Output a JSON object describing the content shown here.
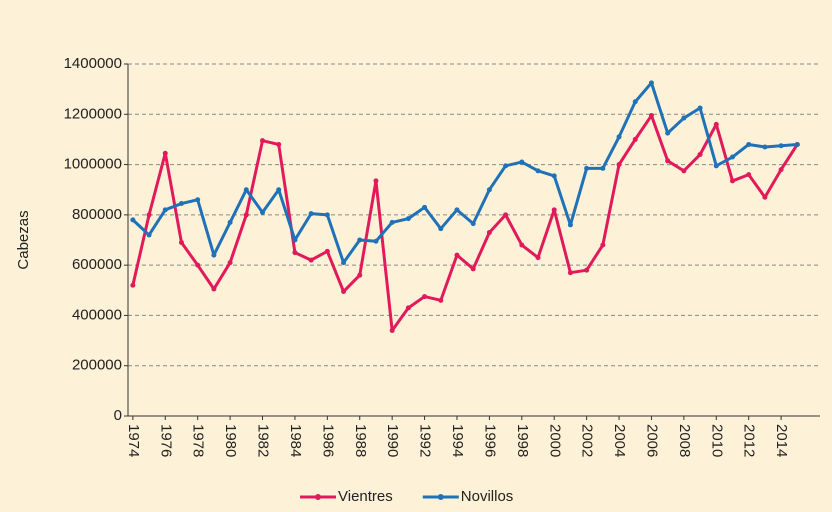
{
  "chart_data": {
    "type": "line",
    "y_label": "Cabezas",
    "x": [
      1974,
      1975,
      1976,
      1977,
      1978,
      1979,
      1980,
      1981,
      1982,
      1983,
      1984,
      1985,
      1986,
      1987,
      1988,
      1989,
      1990,
      1991,
      1992,
      1993,
      1994,
      1995,
      1996,
      1997,
      1998,
      1999,
      2000,
      2001,
      2002,
      2003,
      2004,
      2005,
      2006,
      2007,
      2008,
      2009,
      2010,
      2011,
      2012,
      2013,
      2014,
      2015
    ],
    "series": [
      {
        "name": "Vientres",
        "color": "#e2195b",
        "values": [
          520000,
          800000,
          1045000,
          690000,
          600000,
          505000,
          610000,
          800000,
          1095000,
          1080000,
          650000,
          620000,
          655000,
          495000,
          560000,
          935000,
          340000,
          430000,
          475000,
          460000,
          640000,
          585000,
          730000,
          800000,
          680000,
          630000,
          820000,
          570000,
          580000,
          680000,
          1000000,
          1100000,
          1195000,
          1015000,
          975000,
          1040000,
          1160000,
          935000,
          960000,
          870000,
          980000,
          1080000
        ]
      },
      {
        "name": "Novillos",
        "color": "#1f72b8",
        "values": [
          780000,
          720000,
          820000,
          845000,
          860000,
          640000,
          770000,
          900000,
          810000,
          900000,
          700000,
          805000,
          800000,
          610000,
          700000,
          695000,
          770000,
          785000,
          830000,
          745000,
          820000,
          765000,
          900000,
          995000,
          1010000,
          975000,
          955000,
          760000,
          985000,
          985000,
          1110000,
          1250000,
          1325000,
          1125000,
          1185000,
          1225000,
          995000,
          1030000,
          1080000,
          1070000,
          1075000,
          1080000
        ]
      }
    ],
    "xlim": [
      1973.7,
      2016.4
    ],
    "xticks": [
      1974,
      1976,
      1978,
      1980,
      1982,
      1984,
      1986,
      1988,
      1990,
      1992,
      1994,
      1996,
      1998,
      2000,
      2002,
      2004,
      2006,
      2008,
      2010,
      2012,
      2014
    ],
    "ylim": [
      0,
      1400000
    ],
    "yticks": [
      0,
      200000,
      400000,
      600000,
      800000,
      1000000,
      1200000,
      1400000
    ],
    "grid": true,
    "legend": "bottom"
  }
}
